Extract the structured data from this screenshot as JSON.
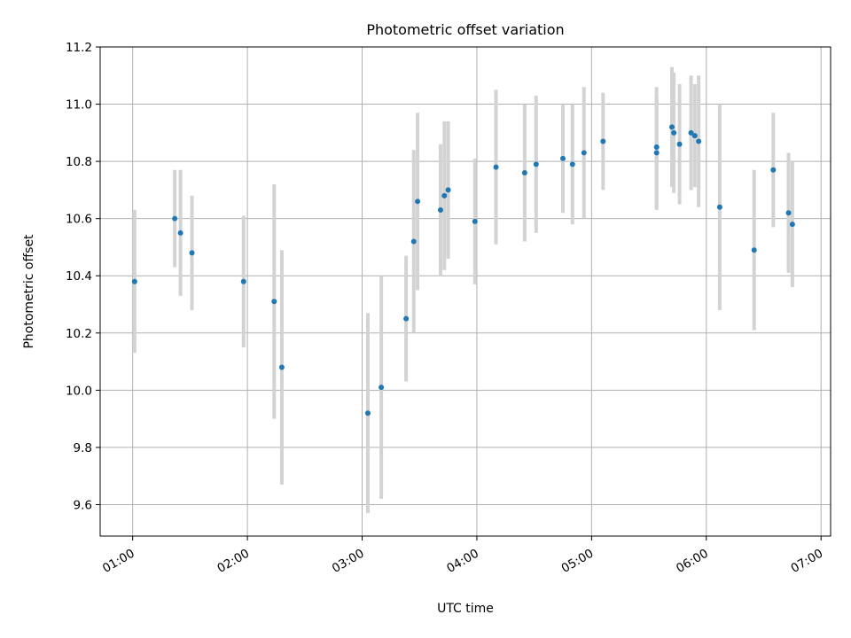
{
  "chart_data": {
    "type": "scatter",
    "title": "Photometric offset variation",
    "xlabel": "UTC time",
    "ylabel": "Photometric offset",
    "x_axis_type": "time",
    "xlim": [
      "00:43",
      "07:05"
    ],
    "ylim": [
      9.49,
      11.2
    ],
    "x_ticks": [
      "01:00",
      "02:00",
      "03:00",
      "04:00",
      "05:00",
      "06:00",
      "07:00"
    ],
    "y_ticks": [
      "9.6",
      "9.8",
      "10.0",
      "10.2",
      "10.4",
      "10.6",
      "10.8",
      "11.0",
      "11.2"
    ],
    "grid": true,
    "marker_color": "#1f77b4",
    "errorbar_color": "#d3d3d3",
    "points": [
      {
        "t": "01:01",
        "y": 10.38,
        "err": 0.25
      },
      {
        "t": "01:22",
        "y": 10.6,
        "err": 0.17
      },
      {
        "t": "01:25",
        "y": 10.55,
        "err": 0.22
      },
      {
        "t": "01:31",
        "y": 10.48,
        "err": 0.2
      },
      {
        "t": "01:58",
        "y": 10.38,
        "err": 0.23
      },
      {
        "t": "02:14",
        "y": 10.31,
        "err": 0.41
      },
      {
        "t": "02:18",
        "y": 10.08,
        "err": 0.41
      },
      {
        "t": "03:03",
        "y": 9.92,
        "err": 0.35
      },
      {
        "t": "03:10",
        "y": 10.01,
        "err": 0.39
      },
      {
        "t": "03:23",
        "y": 10.25,
        "err": 0.22
      },
      {
        "t": "03:27",
        "y": 10.52,
        "err": 0.32
      },
      {
        "t": "03:29",
        "y": 10.66,
        "err": 0.31
      },
      {
        "t": "03:41",
        "y": 10.63,
        "err": 0.23
      },
      {
        "t": "03:43",
        "y": 10.68,
        "err": 0.26
      },
      {
        "t": "03:45",
        "y": 10.7,
        "err": 0.24
      },
      {
        "t": "03:59",
        "y": 10.59,
        "err": 0.22
      },
      {
        "t": "04:10",
        "y": 10.78,
        "err": 0.27
      },
      {
        "t": "04:25",
        "y": 10.76,
        "err": 0.24
      },
      {
        "t": "04:31",
        "y": 10.79,
        "err": 0.24
      },
      {
        "t": "04:45",
        "y": 10.81,
        "err": 0.19
      },
      {
        "t": "04:50",
        "y": 10.79,
        "err": 0.21
      },
      {
        "t": "04:56",
        "y": 10.83,
        "err": 0.23
      },
      {
        "t": "05:06",
        "y": 10.87,
        "err": 0.17
      },
      {
        "t": "05:34",
        "y": 10.83,
        "err": 0.2
      },
      {
        "t": "05:34",
        "y": 10.85,
        "err": 0.21
      },
      {
        "t": "05:42",
        "y": 10.92,
        "err": 0.21
      },
      {
        "t": "05:43",
        "y": 10.9,
        "err": 0.21
      },
      {
        "t": "05:46",
        "y": 10.86,
        "err": 0.21
      },
      {
        "t": "05:52",
        "y": 10.9,
        "err": 0.2
      },
      {
        "t": "05:54",
        "y": 10.89,
        "err": 0.18
      },
      {
        "t": "05:56",
        "y": 10.87,
        "err": 0.23
      },
      {
        "t": "06:07",
        "y": 10.64,
        "err": 0.36
      },
      {
        "t": "06:25",
        "y": 10.49,
        "err": 0.28
      },
      {
        "t": "06:35",
        "y": 10.77,
        "err": 0.2
      },
      {
        "t": "06:43",
        "y": 10.62,
        "err": 0.21
      },
      {
        "t": "06:45",
        "y": 10.58,
        "err": 0.22
      }
    ]
  }
}
